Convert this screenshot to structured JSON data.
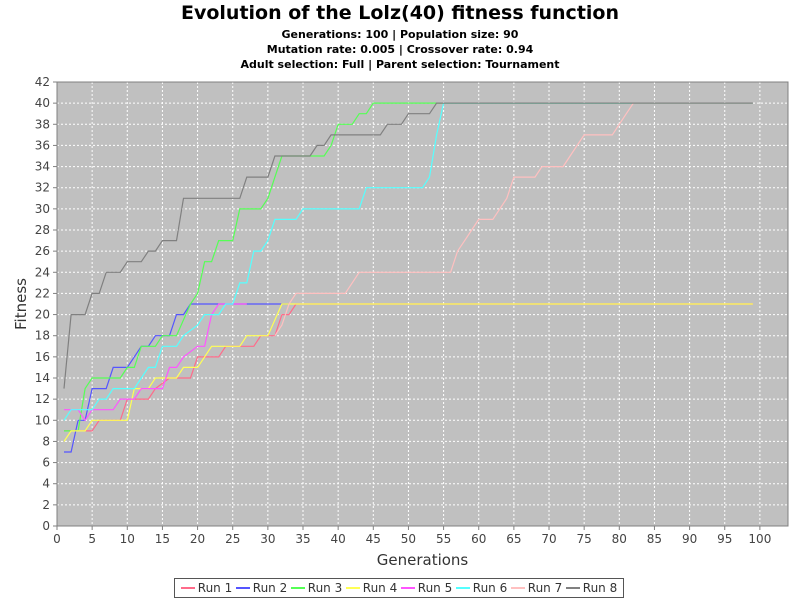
{
  "title": "Evolution of the Lolz(40) fitness function",
  "subtitles": [
    "Generations: 100 | Population size: 90",
    "Mutation rate: 0.005 | Crossover rate: 0.94",
    "Adult selection: Full | Parent selection: Tournament"
  ],
  "chart_data": {
    "type": "line",
    "xlabel": "Generations",
    "ylabel": "Fitness",
    "xlim": [
      0,
      104
    ],
    "ylim": [
      0,
      42
    ],
    "xticks": [
      0,
      5,
      10,
      15,
      20,
      25,
      30,
      35,
      40,
      45,
      50,
      55,
      60,
      65,
      70,
      75,
      80,
      85,
      90,
      95,
      100
    ],
    "yticks": [
      0,
      2,
      4,
      6,
      8,
      10,
      12,
      14,
      16,
      18,
      20,
      22,
      24,
      26,
      28,
      30,
      32,
      34,
      36,
      38,
      40,
      42
    ],
    "grid": true,
    "plot_background": "#c0c0c0",
    "legend_position": "bottom",
    "series": [
      {
        "name": "Run 1",
        "color": "#ff6b8a",
        "points": [
          [
            1,
            9
          ],
          [
            5,
            9
          ],
          [
            6,
            10
          ],
          [
            9,
            10
          ],
          [
            10,
            12
          ],
          [
            13,
            12
          ],
          [
            14,
            13
          ],
          [
            16,
            14
          ],
          [
            19,
            14
          ],
          [
            20,
            16
          ],
          [
            23,
            16
          ],
          [
            24,
            17
          ],
          [
            28,
            17
          ],
          [
            29,
            18
          ],
          [
            31,
            18
          ],
          [
            32,
            20
          ],
          [
            33,
            20
          ],
          [
            34,
            21
          ],
          [
            99,
            21
          ]
        ]
      },
      {
        "name": "Run 2",
        "color": "#5555ff",
        "points": [
          [
            1,
            7
          ],
          [
            2,
            7
          ],
          [
            3,
            10
          ],
          [
            4,
            10
          ],
          [
            5,
            13
          ],
          [
            7,
            13
          ],
          [
            8,
            15
          ],
          [
            10,
            15
          ],
          [
            11,
            16
          ],
          [
            12,
            17
          ],
          [
            13,
            17
          ],
          [
            14,
            18
          ],
          [
            16,
            18
          ],
          [
            17,
            20
          ],
          [
            18,
            20
          ],
          [
            19,
            21
          ],
          [
            33,
            21
          ]
        ]
      },
      {
        "name": "Run 3",
        "color": "#55ff55",
        "points": [
          [
            1,
            9
          ],
          [
            3,
            9
          ],
          [
            4,
            13
          ],
          [
            5,
            14
          ],
          [
            9,
            14
          ],
          [
            10,
            15
          ],
          [
            11,
            15
          ],
          [
            12,
            17
          ],
          [
            14,
            17
          ],
          [
            15,
            18
          ],
          [
            17,
            18
          ],
          [
            19,
            21
          ],
          [
            20,
            22
          ],
          [
            21,
            25
          ],
          [
            22,
            25
          ],
          [
            23,
            27
          ],
          [
            25,
            27
          ],
          [
            26,
            30
          ],
          [
            29,
            30
          ],
          [
            30,
            31
          ],
          [
            31,
            33
          ],
          [
            32,
            35
          ],
          [
            38,
            35
          ],
          [
            39,
            36
          ],
          [
            40,
            38
          ],
          [
            42,
            38
          ],
          [
            43,
            39
          ],
          [
            44,
            39
          ],
          [
            45,
            40
          ],
          [
            99,
            40
          ]
        ]
      },
      {
        "name": "Run 4",
        "color": "#ffff55",
        "points": [
          [
            1,
            8
          ],
          [
            2,
            9
          ],
          [
            4,
            9
          ],
          [
            5,
            10
          ],
          [
            9,
            10
          ],
          [
            10,
            10
          ],
          [
            11,
            13
          ],
          [
            13,
            13
          ],
          [
            14,
            14
          ],
          [
            17,
            14
          ],
          [
            18,
            15
          ],
          [
            20,
            15
          ],
          [
            21,
            16
          ],
          [
            22,
            17
          ],
          [
            26,
            17
          ],
          [
            27,
            18
          ],
          [
            30,
            18
          ],
          [
            32,
            21
          ],
          [
            99,
            21
          ]
        ]
      },
      {
        "name": "Run 5",
        "color": "#ff55ff",
        "points": [
          [
            1,
            11
          ],
          [
            3,
            11
          ],
          [
            4,
            10
          ],
          [
            5,
            11
          ],
          [
            8,
            11
          ],
          [
            9,
            12
          ],
          [
            11,
            12
          ],
          [
            12,
            13
          ],
          [
            15,
            13
          ],
          [
            16,
            15
          ],
          [
            17,
            15
          ],
          [
            18,
            16
          ],
          [
            20,
            17
          ],
          [
            21,
            17
          ],
          [
            22,
            20
          ],
          [
            23,
            21
          ],
          [
            27,
            21
          ]
        ]
      },
      {
        "name": "Run 6",
        "color": "#55ffff",
        "points": [
          [
            1,
            10
          ],
          [
            2,
            11
          ],
          [
            5,
            11
          ],
          [
            6,
            12
          ],
          [
            7,
            12
          ],
          [
            8,
            13
          ],
          [
            11,
            13
          ],
          [
            12,
            14
          ],
          [
            13,
            15
          ],
          [
            14,
            15
          ],
          [
            15,
            17
          ],
          [
            17,
            17
          ],
          [
            18,
            18
          ],
          [
            20,
            19
          ],
          [
            21,
            20
          ],
          [
            23,
            20
          ],
          [
            24,
            21
          ],
          [
            25,
            21
          ],
          [
            26,
            23
          ],
          [
            27,
            23
          ],
          [
            28,
            26
          ],
          [
            29,
            26
          ],
          [
            30,
            27
          ],
          [
            31,
            29
          ],
          [
            32,
            29
          ],
          [
            33,
            29
          ],
          [
            34,
            29
          ],
          [
            35,
            30
          ],
          [
            43,
            30
          ],
          [
            44,
            32
          ],
          [
            48,
            32
          ],
          [
            52,
            32
          ],
          [
            53,
            33
          ],
          [
            54,
            37
          ],
          [
            55,
            40
          ],
          [
            99,
            40
          ]
        ]
      },
      {
        "name": "Run 7",
        "color": "#ffc0c0",
        "points": [
          [
            31,
            18
          ],
          [
            32,
            19
          ],
          [
            33,
            21
          ],
          [
            34,
            22
          ],
          [
            41,
            22
          ],
          [
            42,
            23
          ],
          [
            43,
            24
          ],
          [
            56,
            24
          ],
          [
            57,
            26
          ],
          [
            58,
            27
          ],
          [
            59,
            28
          ],
          [
            60,
            29
          ],
          [
            62,
            29
          ],
          [
            63,
            30
          ],
          [
            64,
            31
          ],
          [
            65,
            33
          ],
          [
            68,
            33
          ],
          [
            69,
            34
          ],
          [
            72,
            34
          ],
          [
            73,
            35
          ],
          [
            74,
            36
          ],
          [
            75,
            37
          ],
          [
            79,
            37
          ],
          [
            81,
            39
          ],
          [
            82,
            40
          ],
          [
            99,
            40
          ]
        ]
      },
      {
        "name": "Run 8",
        "color": "#808080",
        "points": [
          [
            1,
            13
          ],
          [
            2,
            20
          ],
          [
            4,
            20
          ],
          [
            5,
            22
          ],
          [
            6,
            22
          ],
          [
            7,
            24
          ],
          [
            9,
            24
          ],
          [
            10,
            25
          ],
          [
            12,
            25
          ],
          [
            13,
            26
          ],
          [
            14,
            26
          ],
          [
            15,
            27
          ],
          [
            17,
            27
          ],
          [
            18,
            31
          ],
          [
            26,
            31
          ],
          [
            27,
            33
          ],
          [
            30,
            33
          ],
          [
            31,
            35
          ],
          [
            36,
            35
          ],
          [
            37,
            36
          ],
          [
            38,
            36
          ],
          [
            39,
            37
          ],
          [
            46,
            37
          ],
          [
            47,
            38
          ],
          [
            49,
            38
          ],
          [
            50,
            39
          ],
          [
            53,
            39
          ],
          [
            54,
            40
          ],
          [
            99,
            40
          ]
        ]
      }
    ]
  }
}
